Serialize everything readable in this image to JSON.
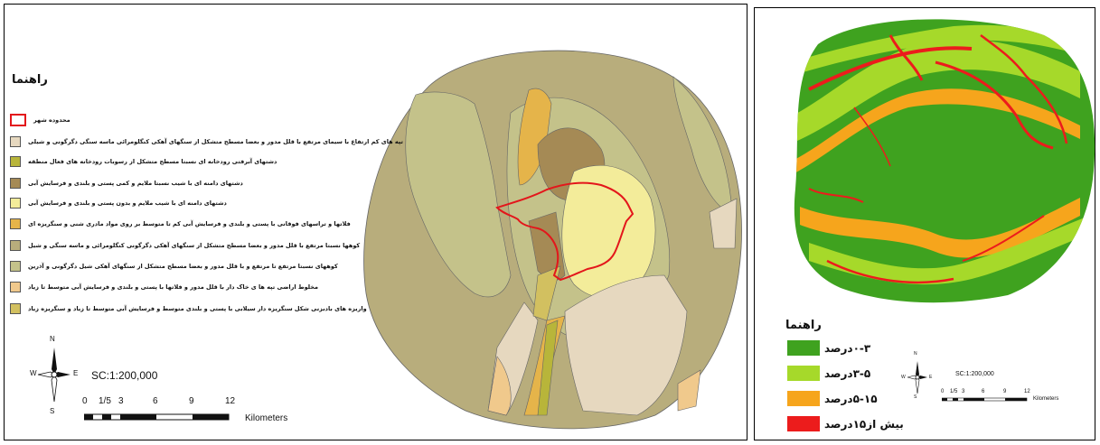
{
  "left_map": {
    "legend_title": "راهنما",
    "legend_items": [
      {
        "label": "محدوده شهر",
        "color": "#ffffff",
        "border": "#e3161b"
      },
      {
        "label": "تپه های کم ارتفاع با سیمای مرتفع با قلل مدور و بعضا مسطح متشکل از سنگهای آهکی کنگلومرائی ماسه سنگی دگرگونی و شیلی",
        "color": "#e6d8bf"
      },
      {
        "label": "دشتهای آبرفتی رودخانه ای نسبتا مسطح متشکل از رسوبات رودخانه های فعال منطقه",
        "color": "#b8b53a"
      },
      {
        "label": "دشتهای دامنه ای با شیب نسبتا ملایم و کمی پستی و بلندی و فرسایش آبی",
        "color": "#a58a55"
      },
      {
        "label": "دشتهای دامنه ای با شیب ملایم و بدون پستی و بلندی و فرسایش آبی",
        "color": "#f3ec9a"
      },
      {
        "label": "فلاتها و تراسهای فوقانی با پستی و بلندی و فرسایش آبی کم تا متوسط بر روی مواد مادری شنی و سنگریزه ای",
        "color": "#e5b44a"
      },
      {
        "label": "کوهها نسبتا مرتفع با قلل مدور و بعضا مسطح متشکل از سنگهای آهکی دگرگونی کنگلومرائی و ماسه سنگی و شیل",
        "color": "#b8ad7c"
      },
      {
        "label": "کوههای نسبتا مرتفع تا مرتفع و با قلل مدور و بعضا مسطح متشکل از سنگهای آهکی شیل دگرگونی و آذرین",
        "color": "#c4c28a"
      },
      {
        "label": "مخلوط اراضی تپه ها ی خاک دار با قلل مدور و فلاتها با پستی و بلندی و فرسایش آبی متوسط تا زیاد",
        "color": "#f0c98c"
      },
      {
        "label": "واریزه های بادبزنی شکل سنگریزه دار سیلابی با پستی و بلندی متوسط و فرسایش آبی متوسط تا زیاد و سنگریزه زیاد",
        "color": "#d2c060"
      }
    ],
    "scale_text": "SC:1:200,000",
    "scale_ticks": [
      "0",
      "1/5",
      "3",
      "6",
      "9",
      "12"
    ],
    "scale_unit": "Kilometers",
    "north_arrow": {
      "n": "N",
      "s": "S",
      "e": "E",
      "w": "W"
    }
  },
  "right_map": {
    "legend_title": "راهنما",
    "legend_items": [
      {
        "label": "۰-۳درصد",
        "color": "#3fa21f"
      },
      {
        "label": "۳-۵درصد",
        "color": "#a6d92a"
      },
      {
        "label": "۵-۱۵درصد",
        "color": "#f6a51c"
      },
      {
        "label": "بیش از۱۵درصد",
        "color": "#ec1c1c"
      }
    ],
    "scale_text": "SC:1:200,000",
    "scale_ticks": [
      "0",
      "1/5",
      "3",
      "6",
      "9",
      "12"
    ],
    "scale_unit": "Kilometers",
    "north_arrow": {
      "n": "N",
      "s": "S",
      "e": "E",
      "w": "W"
    }
  }
}
